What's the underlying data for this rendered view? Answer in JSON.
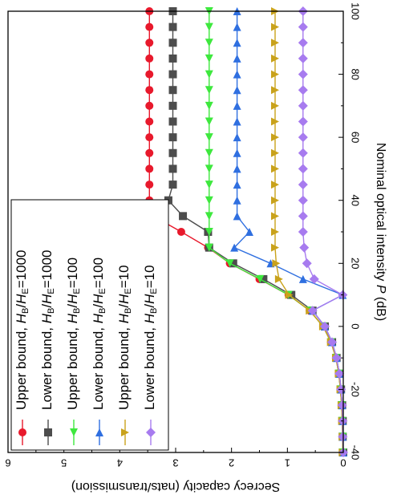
{
  "chart_data": {
    "type": "line",
    "orientation": "rotated-90-clockwise",
    "xlabel_prefix": "Nominal optical intensity ",
    "xlabel_var": "P",
    "xlabel_suffix": " (dB)",
    "ylabel": "Secrecy capacity (nats/transmission)",
    "xlim": [
      -40,
      100
    ],
    "ylim": [
      0,
      6
    ],
    "xticks": [
      "-40",
      "-20",
      "0",
      "20",
      "40",
      "60",
      "80",
      "100"
    ],
    "yticks": [
      "0",
      "1",
      "2",
      "3",
      "4",
      "5",
      "6"
    ],
    "grid": false,
    "legend_position": "inside, near the x = -40 to 40 end of the plot",
    "x": [
      -40,
      -35,
      -30,
      -25,
      -20,
      -15,
      -10,
      -5,
      0,
      5,
      10,
      15,
      20,
      25,
      30,
      35,
      40,
      45,
      50,
      55,
      60,
      65,
      70,
      75,
      80,
      85,
      90,
      95,
      100
    ],
    "series": [
      {
        "name": "Upper bound, HB/HE=1000",
        "legend_prefix": "Upper bound, ",
        "ratio": "1000",
        "color": "#e8192c",
        "marker": "circle",
        "values": [
          0.01,
          0.01,
          0.02,
          0.03,
          0.05,
          0.08,
          0.13,
          0.22,
          0.36,
          0.6,
          0.98,
          1.5,
          2.03,
          2.42,
          2.9,
          3.4,
          3.47,
          3.47,
          3.47,
          3.47,
          3.47,
          3.47,
          3.47,
          3.47,
          3.47,
          3.47,
          3.47,
          3.47,
          3.47
        ]
      },
      {
        "name": "Lower bound, HB/HE=1000",
        "legend_prefix": "Lower bound, ",
        "ratio": "1000",
        "color": "#4d4d4d",
        "marker": "square",
        "values": [
          0.0,
          0.01,
          0.01,
          0.02,
          0.04,
          0.07,
          0.12,
          0.2,
          0.33,
          0.55,
          0.93,
          1.43,
          1.97,
          2.4,
          2.42,
          2.87,
          3.13,
          3.05,
          3.05,
          3.05,
          3.05,
          3.05,
          3.05,
          3.05,
          3.05,
          3.05,
          3.05,
          3.05,
          3.05
        ]
      },
      {
        "name": "Upper bound, HB/HE=100",
        "legend_prefix": "Upper bound, ",
        "ratio": "100",
        "color": "#3ee83e",
        "marker": "triangle-right",
        "values": [
          0.01,
          0.01,
          0.02,
          0.03,
          0.05,
          0.08,
          0.13,
          0.22,
          0.36,
          0.6,
          0.98,
          1.49,
          2.03,
          2.4,
          2.4,
          2.4,
          2.4,
          2.4,
          2.4,
          2.4,
          2.4,
          2.4,
          2.4,
          2.4,
          2.4,
          2.4,
          2.4,
          2.4,
          2.4
        ]
      },
      {
        "name": "Lower bound, HB/HE=100",
        "legend_prefix": "Lower bound, ",
        "ratio": "100",
        "color": "#2f6fe0",
        "marker": "triangle-left",
        "values": [
          0.0,
          0.01,
          0.01,
          0.02,
          0.04,
          0.07,
          0.12,
          0.2,
          0.33,
          0.55,
          0.01,
          0.72,
          1.3,
          1.95,
          1.68,
          1.9,
          1.9,
          1.9,
          1.9,
          1.9,
          1.9,
          1.9,
          1.9,
          1.9,
          1.9,
          1.9,
          1.9,
          1.9,
          1.9
        ]
      },
      {
        "name": "Upper bound, HB/HE=10",
        "legend_prefix": "Upper bound, ",
        "ratio": "10",
        "color": "#c9a21b",
        "marker": "triangle-down",
        "values": [
          0.01,
          0.01,
          0.02,
          0.03,
          0.05,
          0.08,
          0.13,
          0.22,
          0.36,
          0.6,
          0.97,
          1.15,
          1.2,
          1.22,
          1.22,
          1.22,
          1.22,
          1.22,
          1.22,
          1.22,
          1.22,
          1.22,
          1.22,
          1.22,
          1.22,
          1.22,
          1.22,
          1.22,
          1.22
        ]
      },
      {
        "name": "Lower bound, HB/HE=10",
        "legend_prefix": "Lower bound, ",
        "ratio": "10",
        "color": "#a77bef",
        "marker": "diamond",
        "values": [
          0.0,
          0.01,
          0.01,
          0.02,
          0.04,
          0.07,
          0.12,
          0.2,
          0.33,
          0.55,
          0.01,
          0.52,
          0.65,
          0.7,
          0.72,
          0.72,
          0.72,
          0.72,
          0.72,
          0.72,
          0.72,
          0.72,
          0.72,
          0.72,
          0.72,
          0.72,
          0.72,
          0.72,
          0.72
        ]
      }
    ]
  }
}
